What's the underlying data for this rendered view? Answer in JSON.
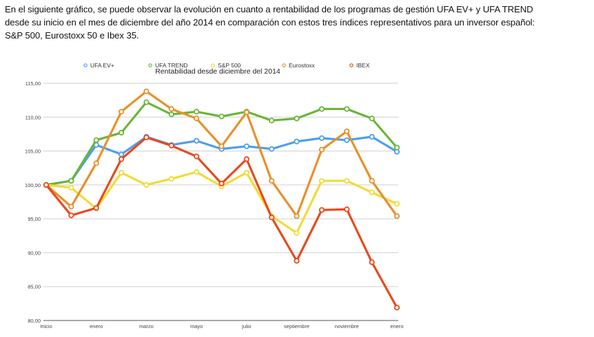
{
  "intro": {
    "lines": [
      "En el siguiente gráfico, se puede observar la evolución en cuanto a rentabilidad de los programas de gestión UFA EV+ y UFA TREND",
      "desde su inicio en el mes de diciembre del año 2014 en comparación con estos tres índices representativos para un inversor español:",
      "S&P 500, Eurostoxx 50 e Ibex 35."
    ]
  },
  "chart_data": {
    "type": "line",
    "title": "Rentabilidad desde diciembre del 2014",
    "xlabel": "",
    "ylabel": "",
    "ylim": [
      80,
      115
    ],
    "y_ticks": [
      "80,00",
      "85,00",
      "90,00",
      "95,00",
      "100,00",
      "105,00",
      "110,00",
      "115,00"
    ],
    "y_tick_values": [
      80,
      85,
      90,
      95,
      100,
      105,
      110,
      115
    ],
    "grid": true,
    "legend_position": "top",
    "x": [
      "Inicio",
      "",
      "enero",
      "",
      "marzo",
      "",
      "mayo",
      "",
      "julio",
      "",
      "septiembre",
      "",
      "noviembre",
      "",
      "enero"
    ],
    "x_tick_labels": [
      {
        "index": 0,
        "label": "Inicio"
      },
      {
        "index": 2,
        "label": "enero"
      },
      {
        "index": 4,
        "label": "marzo"
      },
      {
        "index": 6,
        "label": "mayo"
      },
      {
        "index": 8,
        "label": "julio"
      },
      {
        "index": 10,
        "label": "septiembre"
      },
      {
        "index": 12,
        "label": "noviembre"
      },
      {
        "index": 14,
        "label": "enero"
      }
    ],
    "series": [
      {
        "name": "UFA EV+",
        "color": "#4a9ff0",
        "values": [
          100.0,
          100.6,
          105.9,
          104.5,
          107.1,
          105.9,
          106.5,
          105.3,
          105.7,
          105.3,
          106.4,
          106.9,
          106.6,
          107.1,
          104.9
        ]
      },
      {
        "name": "UFA TREND",
        "color": "#6ab53a",
        "values": [
          100.0,
          100.6,
          106.6,
          107.7,
          112.2,
          110.4,
          110.8,
          110.1,
          110.8,
          109.5,
          109.8,
          111.2,
          111.2,
          109.8,
          105.5
        ]
      },
      {
        "name": "S&P 500",
        "color": "#f2dc34",
        "values": [
          100.0,
          99.6,
          96.5,
          101.8,
          100.0,
          100.9,
          101.9,
          99.8,
          101.8,
          95.4,
          92.9,
          100.6,
          100.6,
          98.9,
          97.2
        ]
      },
      {
        "name": "Eurostoxx",
        "color": "#e8902a",
        "values": [
          100.0,
          96.8,
          103.2,
          110.8,
          113.8,
          111.2,
          109.8,
          105.7,
          110.7,
          100.6,
          95.4,
          105.2,
          107.9,
          100.6,
          95.4
        ]
      },
      {
        "name": "IBEX",
        "color": "#e8491c",
        "values": [
          100.0,
          95.5,
          96.6,
          103.8,
          107.0,
          105.8,
          104.2,
          100.2,
          103.8,
          95.2,
          88.8,
          96.3,
          96.4,
          88.6,
          81.9
        ]
      }
    ]
  }
}
